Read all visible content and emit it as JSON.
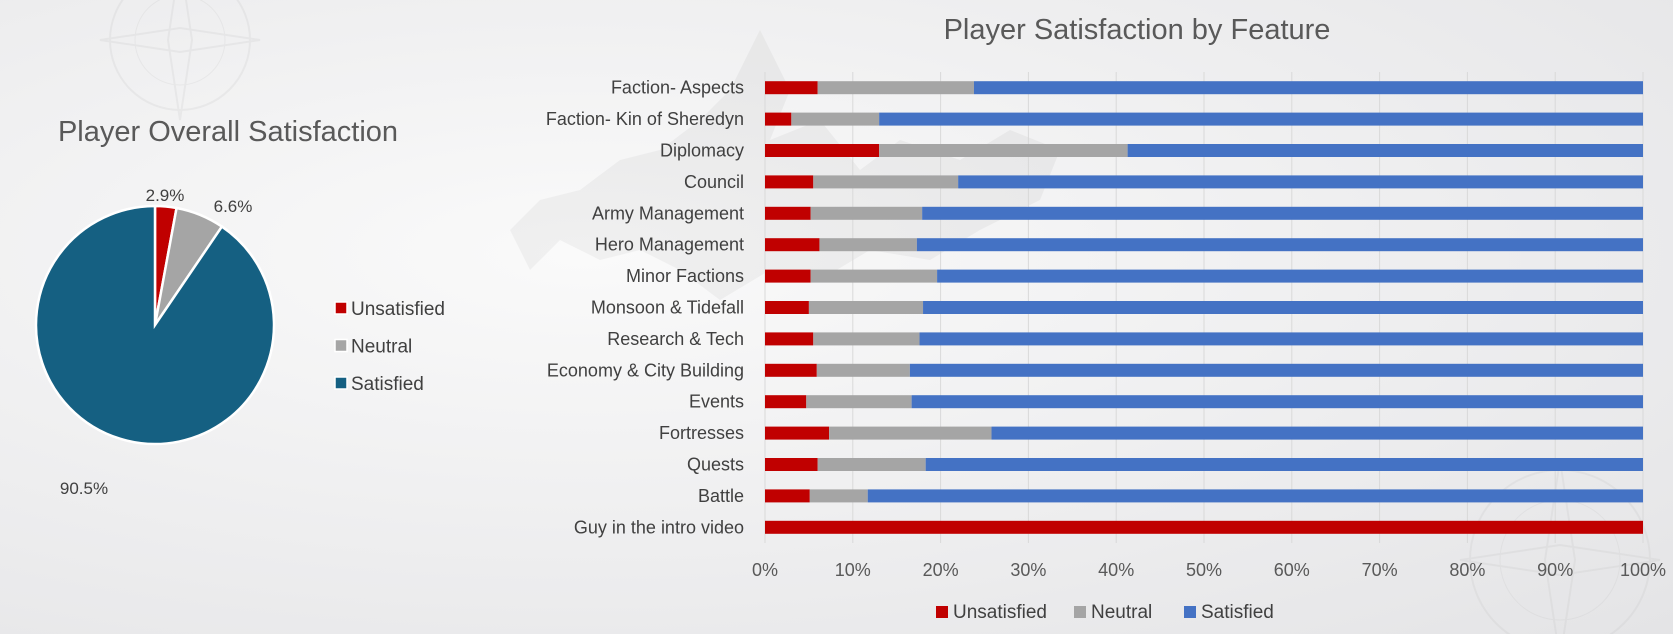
{
  "colors": {
    "unsatisfied": "#C00000",
    "neutral": "#A5A5A5",
    "satisfied_pie": "#156082",
    "satisfied_bar": "#4472C4",
    "grid": "#D9D9D9"
  },
  "chart_data": [
    {
      "type": "pie",
      "title": "Player Overall Satisfaction",
      "legend_position": "right",
      "slices": [
        {
          "name": "Unsatisfied",
          "value": 2.9,
          "label": "2.9%"
        },
        {
          "name": "Neutral",
          "value": 6.6,
          "label": "6.6%"
        },
        {
          "name": "Satisfied",
          "value": 90.5,
          "label": "90.5%"
        }
      ]
    },
    {
      "type": "bar",
      "orientation": "horizontal",
      "stacked": "percent",
      "title": "Player Satisfaction by Feature",
      "legend_position": "bottom",
      "grid": true,
      "xlim": [
        0,
        100
      ],
      "x_ticks": [
        "0%",
        "10%",
        "20%",
        "30%",
        "40%",
        "50%",
        "60%",
        "70%",
        "80%",
        "90%",
        "100%"
      ],
      "categories": [
        "Faction- Aspects",
        "Faction- Kin of Sheredyn",
        "Diplomacy",
        "Council",
        "Army Management",
        "Hero Management",
        "Minor Factions",
        "Monsoon & Tidefall",
        "Research & Tech",
        "Economy & City Building",
        "Events",
        "Fortresses",
        "Quests",
        "Battle",
        "Guy in the intro video"
      ],
      "series": [
        {
          "name": "Unsatisfied",
          "values": [
            6,
            3,
            13,
            5.5,
            5.2,
            6.2,
            5.2,
            5,
            5.5,
            5.9,
            4.7,
            7.3,
            6,
            5.1,
            100
          ]
        },
        {
          "name": "Neutral",
          "values": [
            17.8,
            10,
            28.3,
            16.5,
            12.7,
            11.1,
            14.4,
            13,
            12.1,
            10.6,
            12,
            18.5,
            12.3,
            6.6,
            0
          ]
        },
        {
          "name": "Satisfied",
          "values": [
            76.2,
            87,
            58.7,
            78,
            82.1,
            82.7,
            80.4,
            82,
            82.4,
            83.5,
            83.3,
            74.2,
            81.7,
            88.3,
            0
          ]
        }
      ]
    }
  ]
}
